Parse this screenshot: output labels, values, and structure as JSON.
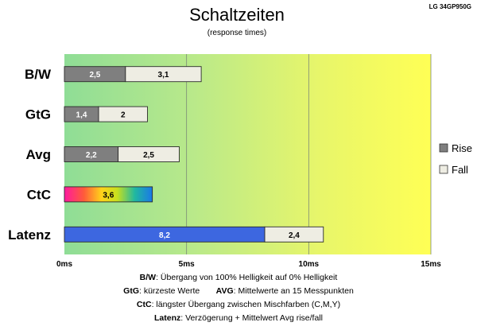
{
  "chart_data": {
    "type": "bar",
    "orientation": "horizontal",
    "stacked": true,
    "title": "Schaltzeiten",
    "subtitle": "(response times)",
    "model_label": "LG 34GP950G",
    "categories": [
      "B/W",
      "GtG",
      "Avg",
      "CtC",
      "Latenz"
    ],
    "series": [
      {
        "name": "Rise",
        "values": [
          2.5,
          1.4,
          2.2,
          null,
          null
        ],
        "color": "#7f7f7f"
      },
      {
        "name": "Fall",
        "values": [
          3.1,
          2,
          2.5,
          null,
          2.4
        ],
        "color": "#eeede3"
      }
    ],
    "special": [
      {
        "category": "CtC",
        "value": 3.6,
        "label": "3,6",
        "style": "rainbow-gradient"
      },
      {
        "category": "Latenz",
        "value": 8.2,
        "label": "8,2",
        "color": "#3d67e0"
      }
    ],
    "value_labels": [
      [
        "2,5",
        "3,1"
      ],
      [
        "1,4",
        "2"
      ],
      [
        "2,2",
        "2,5"
      ],
      [
        "3,6"
      ],
      [
        "8,2",
        "2,4"
      ]
    ],
    "xlim": [
      0,
      15
    ],
    "xticks": [
      0,
      5,
      10,
      15
    ],
    "xtick_labels": [
      "0ms",
      "5ms",
      "10ms",
      "15ms"
    ],
    "grid": true,
    "background": "gradient green to yellow",
    "legend_position": "right"
  },
  "legend": {
    "rise": "Rise",
    "fall": "Fall"
  },
  "footnotes": {
    "bw_key": "B/W",
    "bw_text": ":  Übergang von 100% Helligkeit auf 0% Helligkeit",
    "gtg_key": "GtG",
    "gtg_text": ": kürzeste  Werte",
    "avg_key": "AVG",
    "avg_text": ": Mittelwerte  an 15 Messpunkten",
    "ctc_key": "CtC",
    "ctc_text": ": längster Übergang  zwischen Mischfarben (C,M,Y)",
    "lat_key": "Latenz",
    "lat_text": ": Verzögerung  + Mittelwert Avg rise/fall"
  }
}
